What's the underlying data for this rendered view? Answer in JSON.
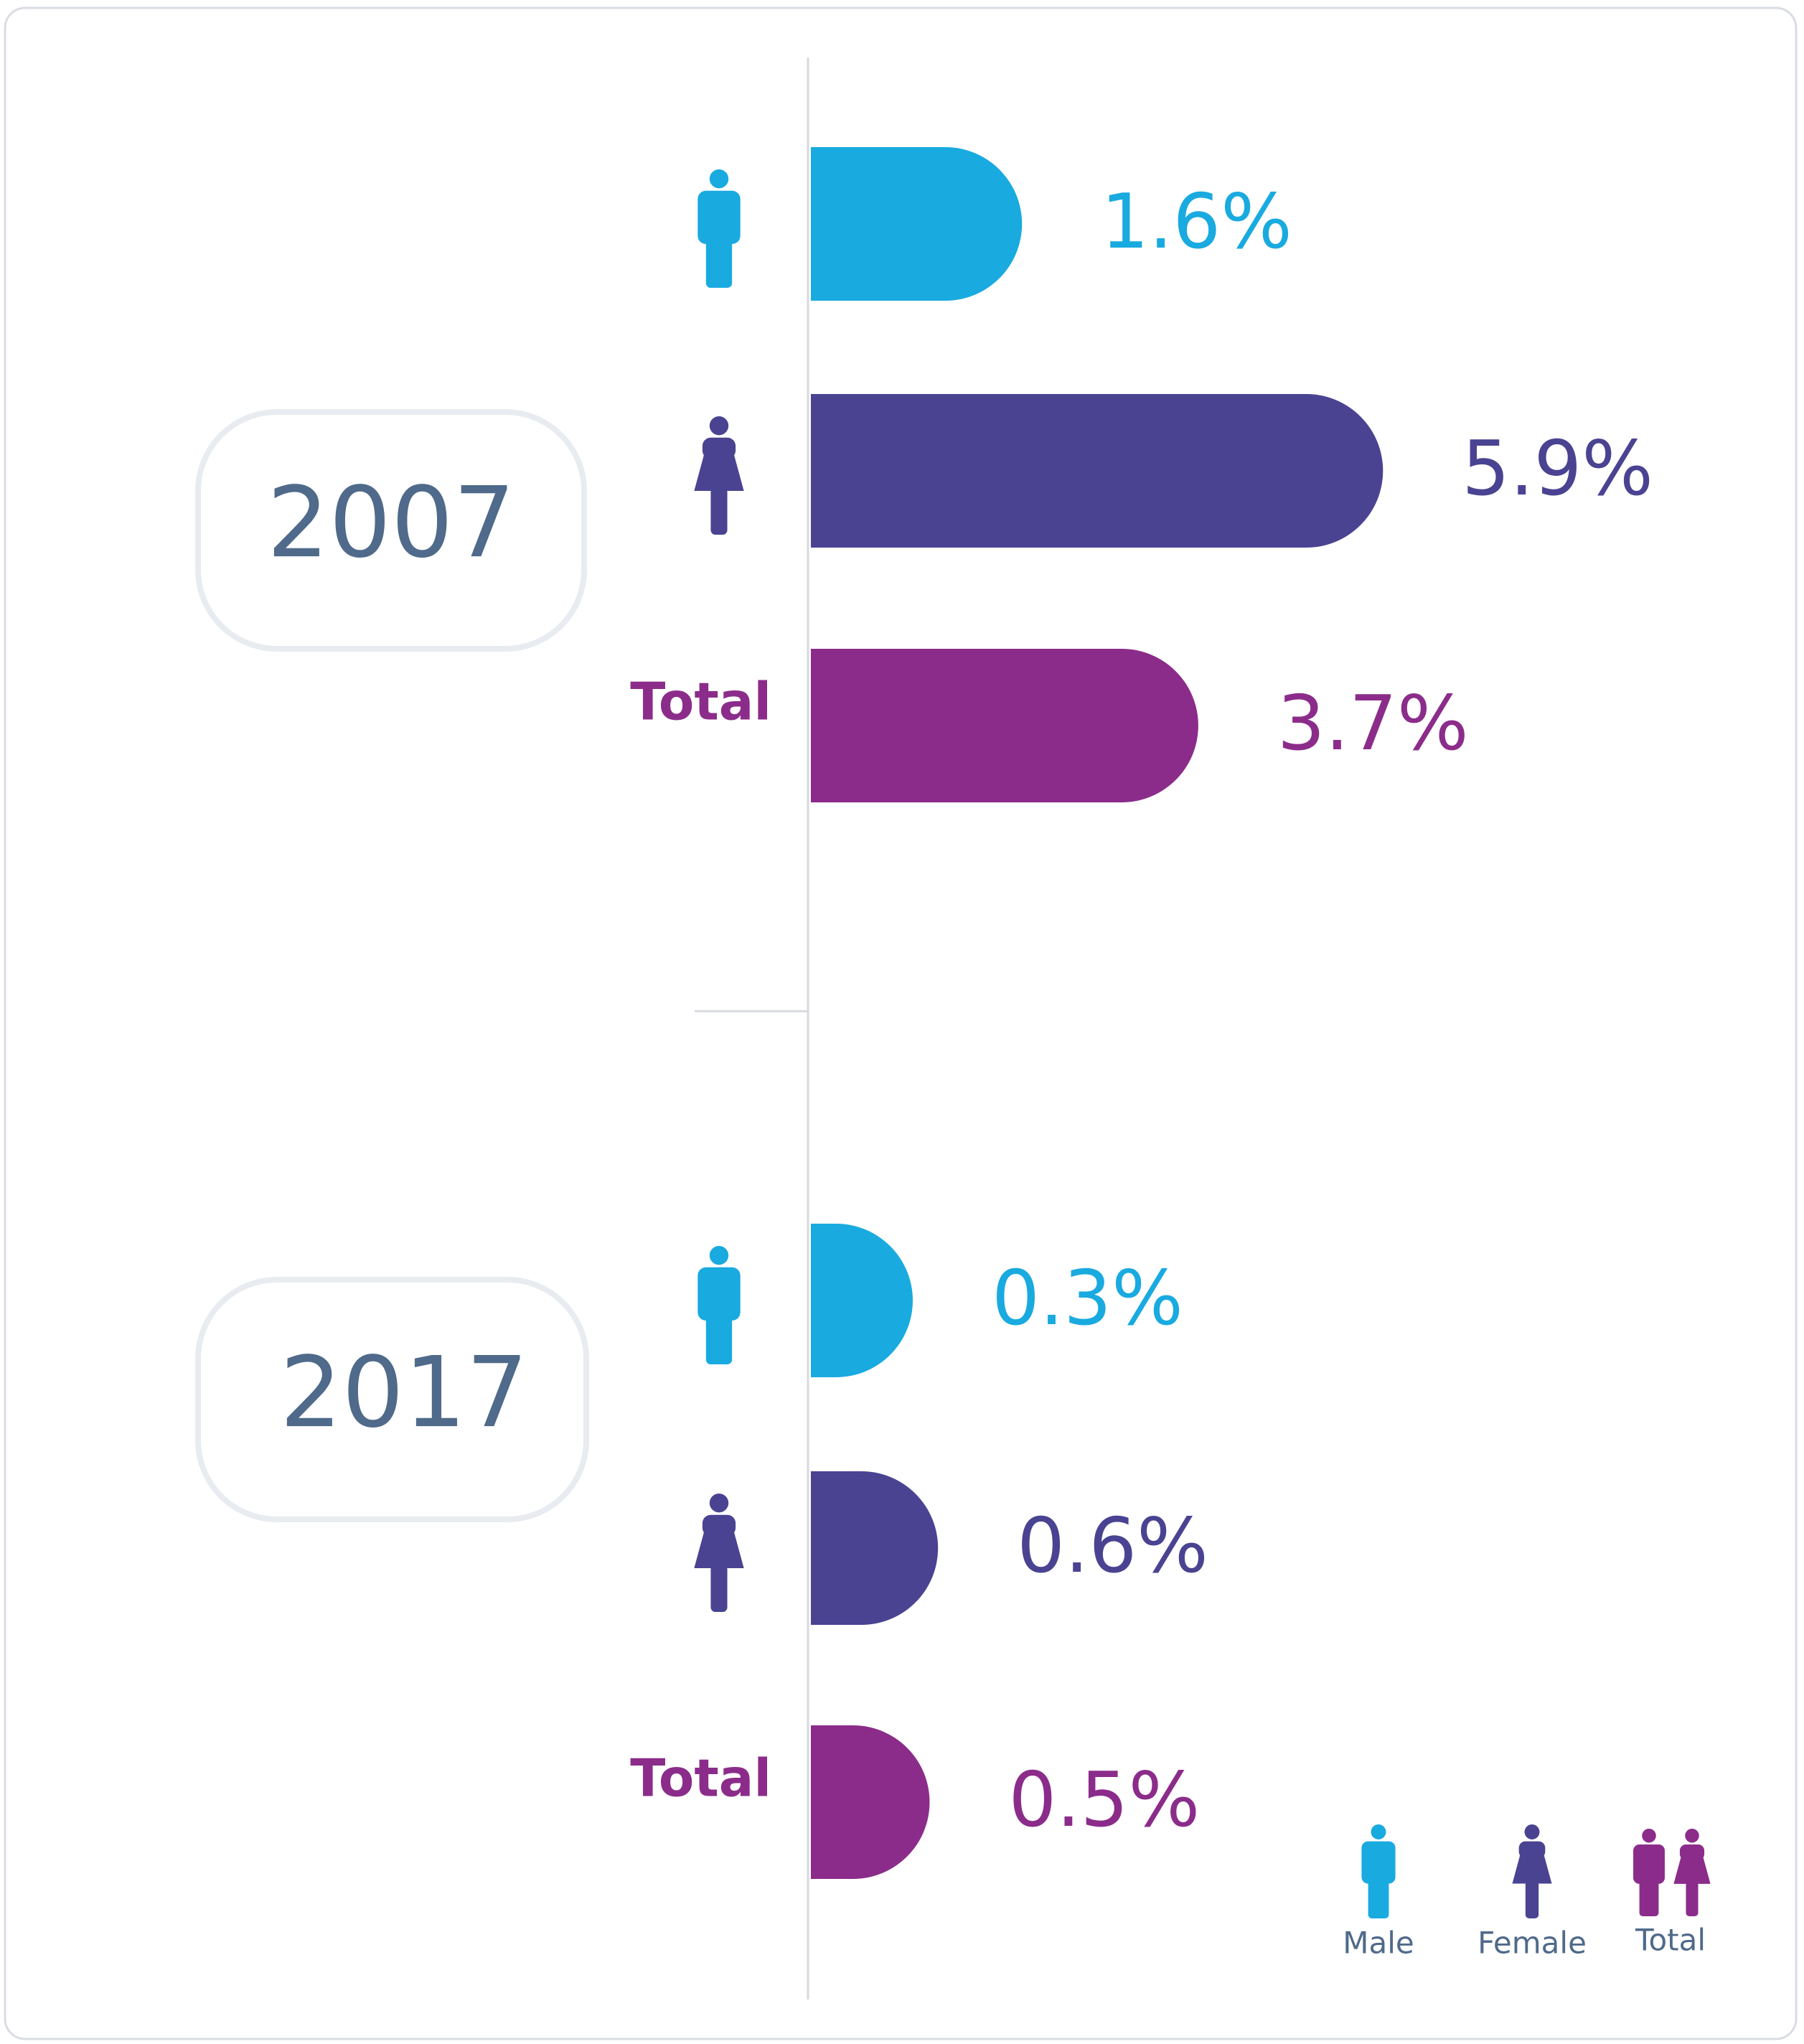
{
  "chart_data": {
    "type": "bar",
    "categories": [
      "2007",
      "2017"
    ],
    "series": [
      {
        "name": "Male",
        "color": "#19aae0",
        "values": [
          1.6,
          0.3
        ],
        "value_labels": [
          "1.6%",
          "0.3%"
        ]
      },
      {
        "name": "Female",
        "color": "#4a4392",
        "values": [
          5.9,
          0.6
        ],
        "value_labels": [
          "5.9%",
          "0.6%"
        ]
      },
      {
        "name": "Total",
        "color": "#8b2c8a",
        "values": [
          3.7,
          0.5
        ],
        "value_labels": [
          "3.7%",
          "0.5%"
        ]
      }
    ],
    "legend": "bottom-right"
  }
}
